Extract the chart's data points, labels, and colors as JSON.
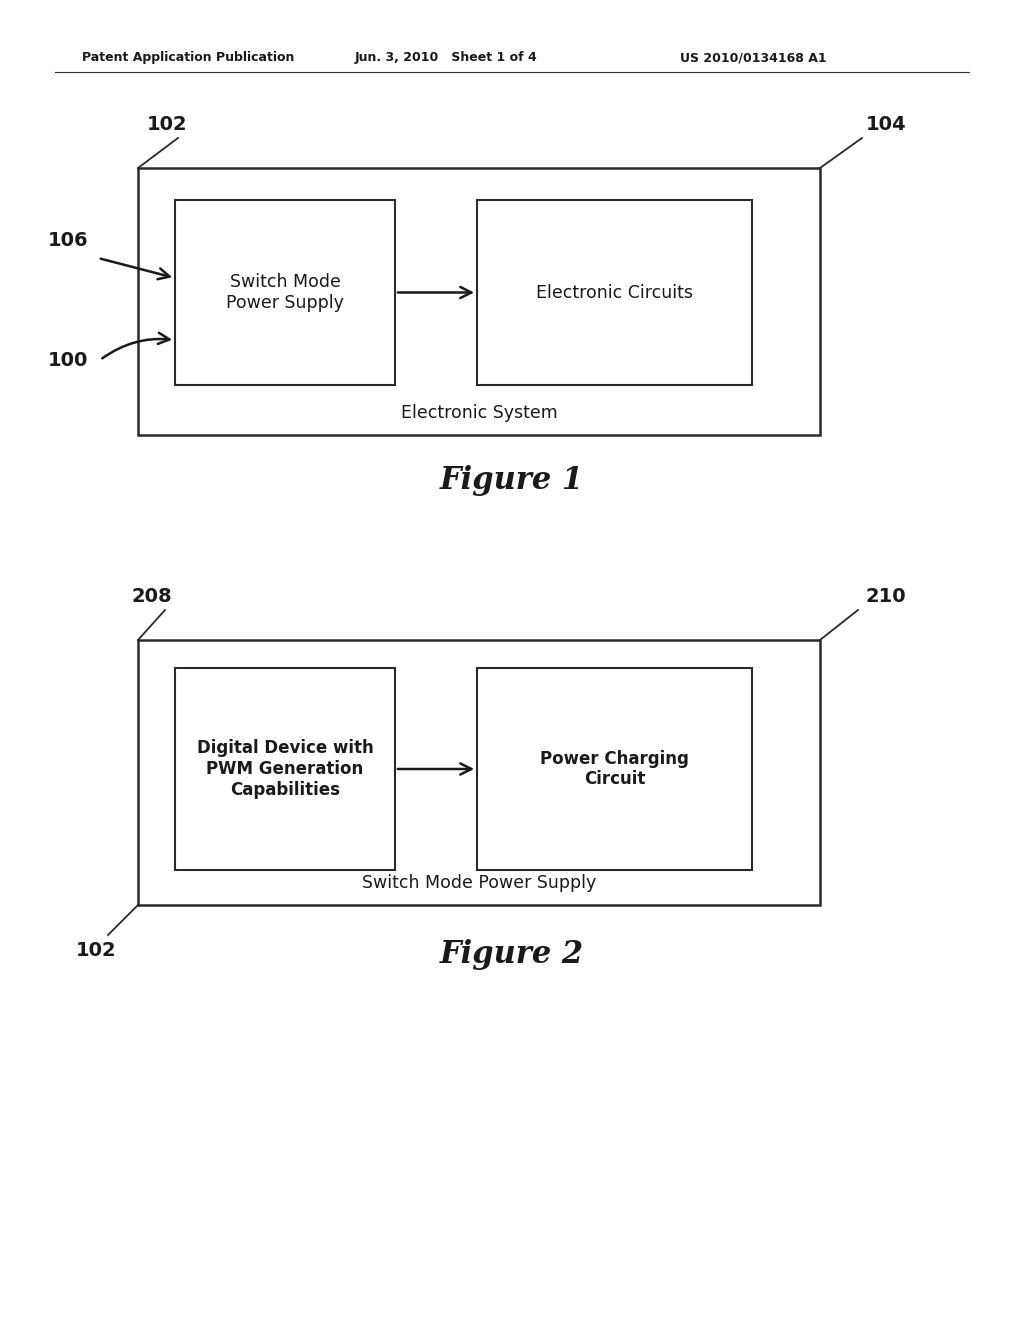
{
  "bg_color": "#ffffff",
  "header_left": "Patent Application Publication",
  "header_center": "Jun. 3, 2010   Sheet 1 of 4",
  "header_right": "US 2010/0134168 A1",
  "fig1_title": "Figure 1",
  "fig1_outer_label": "102",
  "fig1_outer_label2": "104",
  "fig1_input_label1": "106",
  "fig1_input_label2": "100",
  "fig1_box1_text": "Switch Mode\nPower Supply",
  "fig1_box2_text": "Electronic Circuits",
  "fig1_outer_caption": "Electronic System",
  "fig2_title": "Figure 2",
  "fig2_outer_label": "208",
  "fig2_outer_label2": "210",
  "fig2_input_label": "102",
  "fig2_box1_text": "Digital Device with\nPWM Generation\nCapabilities",
  "fig2_box2_text": "Power Charging\nCircuit",
  "fig2_outer_caption": "Switch Mode Power Supply"
}
